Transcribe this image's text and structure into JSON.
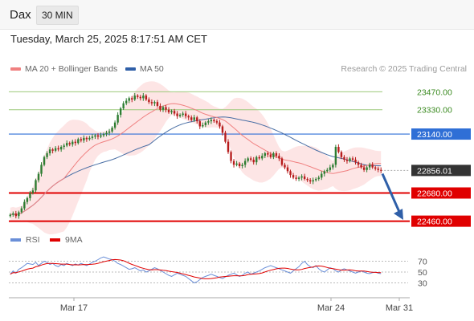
{
  "header": {
    "symbol": "Dax",
    "timeframe": "30 MIN"
  },
  "timestamp": "Tuesday, March 25, 2025 8:17:51 AM CET",
  "credit": "Research © 2025 Trading Central",
  "colors": {
    "up": "#2e7d32",
    "down": "#b71c1c",
    "bands": "#fde0e0",
    "ma20": "#f08080",
    "ma50": "#4a6fa5",
    "rsi": "#6a8fd8",
    "rsi_ma": "#e00000",
    "support": "#e00000",
    "resistance_major": "#2f6fd6",
    "resistance_minor": "#9cc97a",
    "current": "#333333",
    "arrow": "#2f5fa8"
  },
  "chart_data": [
    {
      "type": "candlestick",
      "legend": [
        "MA 20 + Bollinger Bands",
        "MA 50"
      ],
      "x_ticks": [
        "Mar 17",
        "Mar 24",
        "Mar 31"
      ],
      "ylim": [
        22420,
        23560
      ],
      "levels": [
        {
          "value": 23470.0,
          "label": "23470.00",
          "style": "resistance_minor"
        },
        {
          "value": 23330.0,
          "label": "23330.00",
          "style": "resistance_minor"
        },
        {
          "value": 23140.0,
          "label": "23140.00",
          "style": "resistance_major"
        },
        {
          "value": 22856.01,
          "label": "22856.01",
          "style": "current"
        },
        {
          "value": 22680.0,
          "label": "22680.00",
          "style": "support"
        },
        {
          "value": 22460.0,
          "label": "22460.00",
          "style": "support"
        }
      ],
      "close": [
        22510,
        22520,
        22500,
        22530,
        22560,
        22610,
        22640,
        22680,
        22700,
        22780,
        22830,
        22900,
        22960,
        22990,
        23020,
        23010,
        23030,
        23020,
        23040,
        23050,
        23070,
        23060,
        23080,
        23070,
        23100,
        23090,
        23110,
        23100,
        23110,
        23120,
        23130,
        23120,
        23130,
        23140,
        23150,
        23160,
        23190,
        23230,
        23290,
        23340,
        23380,
        23400,
        23420,
        23410,
        23440,
        23430,
        23420,
        23440,
        23410,
        23390,
        23380,
        23390,
        23360,
        23330,
        23350,
        23330,
        23310,
        23320,
        23300,
        23280,
        23290,
        23300,
        23280,
        23270,
        23250,
        23270,
        23240,
        23200,
        23210,
        23230,
        23240,
        23250,
        23240,
        23230,
        23200,
        23150,
        23080,
        23000,
        22930,
        22900,
        22910,
        22890,
        22900,
        22930,
        22950,
        22940,
        22920,
        22960,
        22950,
        22970,
        22990,
        22980,
        22960,
        22990,
        22970,
        22950,
        22900,
        22880,
        22850,
        22820,
        22800,
        22790,
        22800,
        22810,
        22790,
        22780,
        22770,
        22780,
        22790,
        22800,
        22830,
        22850,
        22860,
        22880,
        22900,
        23040,
        23000,
        22960,
        22940,
        22930,
        22950,
        22940,
        22920,
        22900,
        22880,
        22860,
        22880,
        22900,
        22880,
        22870,
        22860,
        22856
      ],
      "rsi": {
        "name": "RSI",
        "ma_name": "9MA",
        "ticks": [
          70,
          50,
          30
        ],
        "ylim": [
          10,
          90
        ],
        "values": [
          46,
          52,
          48,
          55,
          58,
          62,
          66,
          65,
          64,
          68,
          62,
          66,
          70,
          68,
          64,
          66,
          62,
          60,
          64,
          62,
          66,
          64,
          62,
          65,
          63,
          66,
          64,
          62,
          65,
          68,
          70,
          73,
          76,
          78,
          76,
          74,
          73,
          70,
          66,
          64,
          61,
          58,
          55,
          56,
          58,
          55,
          52,
          54,
          50,
          52,
          55,
          58,
          56,
          53,
          50,
          47,
          44,
          42,
          45,
          48,
          46,
          44,
          42,
          38,
          34,
          30,
          32,
          36,
          40,
          42,
          44,
          46,
          44,
          42,
          40,
          38,
          41,
          44,
          46,
          48,
          45,
          42,
          44,
          48,
          50,
          46,
          48,
          50,
          52,
          55,
          58,
          60,
          62,
          60,
          58,
          56,
          54,
          52,
          50,
          48,
          52,
          56,
          60,
          66,
          70,
          64,
          60,
          58,
          62,
          56,
          52,
          50,
          54,
          58,
          56,
          52,
          50,
          54,
          56,
          54,
          52,
          50,
          48,
          50,
          52,
          50,
          48,
          47,
          49,
          50,
          48,
          47
        ]
      }
    }
  ]
}
